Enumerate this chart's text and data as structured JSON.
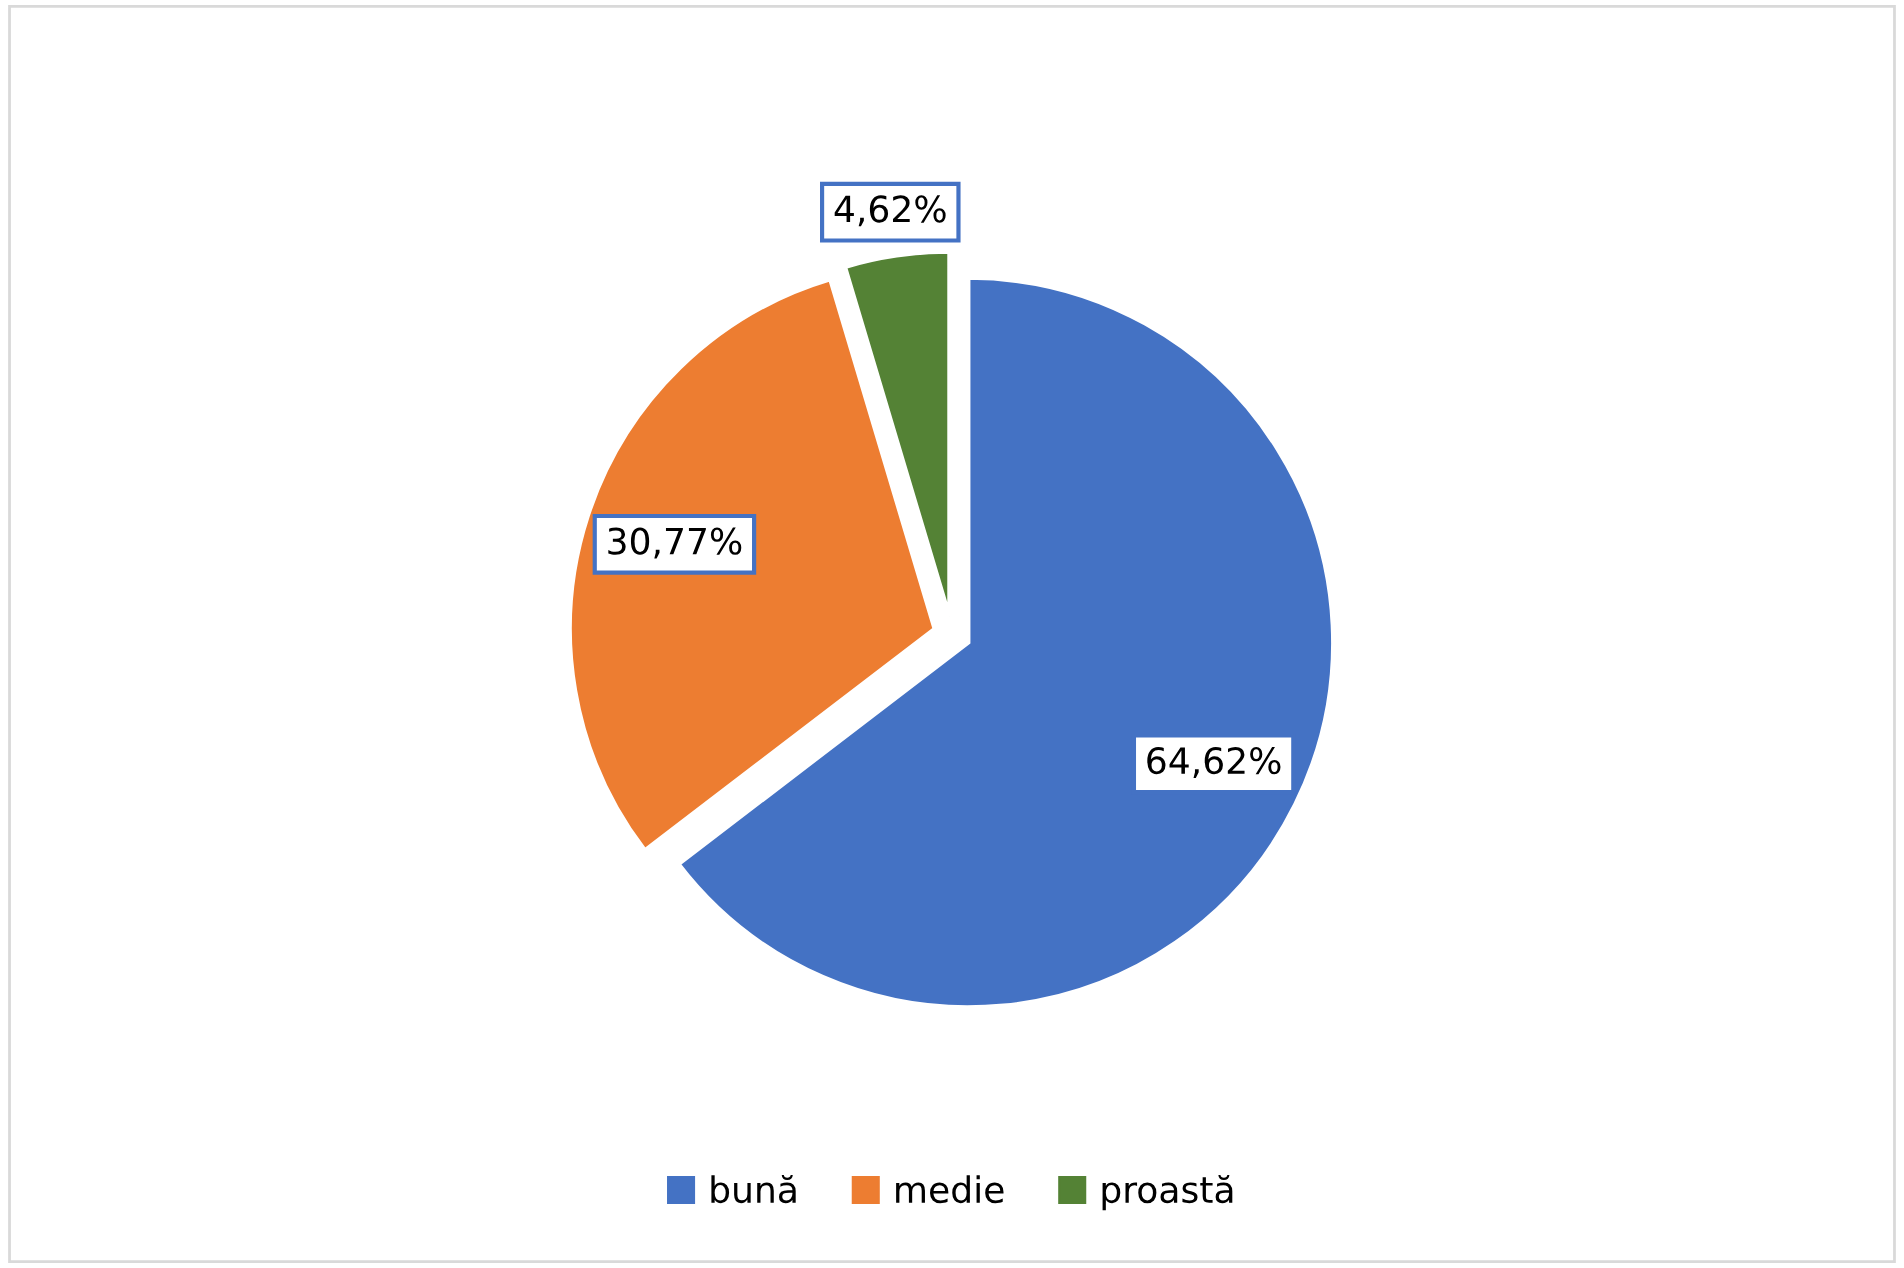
{
  "chart_data": {
    "type": "pie",
    "categories": [
      "bună",
      "medie",
      "proastă"
    ],
    "values": [
      64.62,
      30.77,
      4.62
    ],
    "colors": [
      "#4472c4",
      "#ed7d31",
      "#548235"
    ],
    "value_labels": [
      "64,62%",
      "30,77%",
      "4,62%"
    ],
    "legend": "bottom"
  }
}
